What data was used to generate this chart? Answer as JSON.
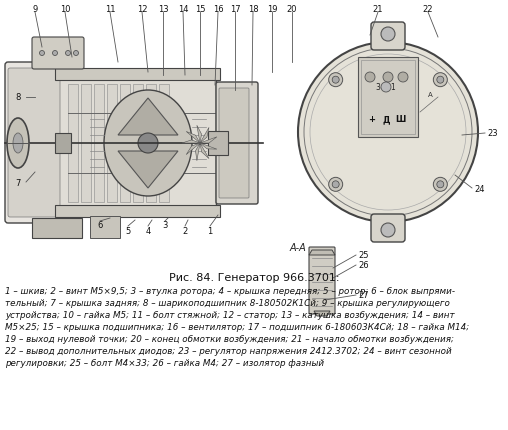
{
  "bg_color": "#ffffff",
  "fig_width": 5.08,
  "fig_height": 4.31,
  "dpi": 100,
  "caption_title": "Рис. 84. Генератор 966.3701:",
  "caption_title_size": 8.0,
  "legend_lines": [
    "1 – шкив; 2 – винт М5×9,5; 3 – втулка ротора; 4 – крышка передняя; 5 – ротор; 6 – блок выпрями-",
    "тельный; 7 – крышка задняя; 8 – шарикоподшипник 8-180502К1Сй; 9 – крышка регулирующего",
    "устройства; 10 – гайка М5; 11 – болт стяжной; 12 – статор; 13 – катушка возбуждения; 14 – винт",
    "М5×25; 15 – крышка подшипника; 16 – вентилятор; 17 – подшипник 6-180603К4Сй; 18 – гайка М14;",
    "19 – выход нулевой точки; 20 – конец обмотки возбуждения; 21 – начало обмотки возбуждения;",
    "22 – вывод дополнительных диодов; 23 – регулятор напряжения 2412.3702; 24 – винт сезонной",
    "регулировки; 25 – болт М4×33; 26 – гайка М4; 27 – изолятор фазный"
  ],
  "legend_fontsize": 6.3,
  "text_color": "#111111",
  "line_color": "#444444",
  "diagram_bg": "#f8f8f6"
}
